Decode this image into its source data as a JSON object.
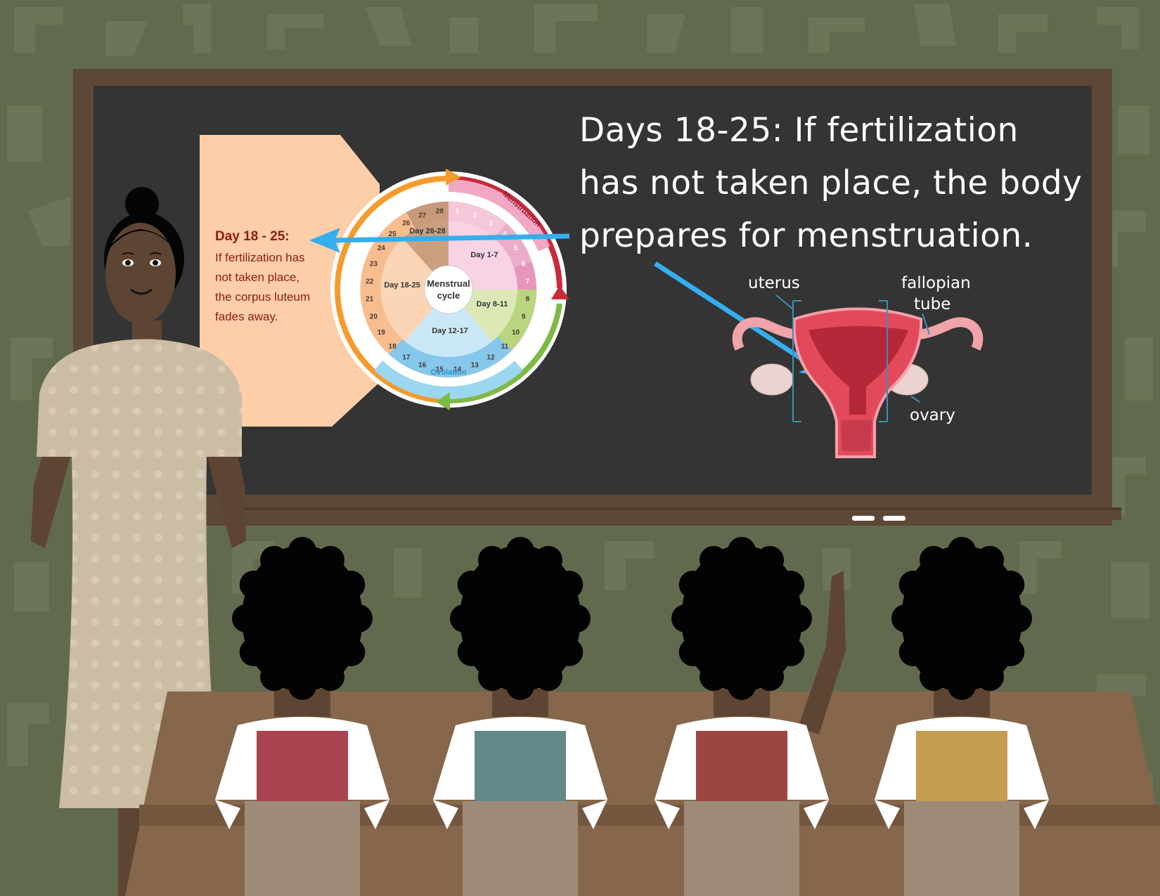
{
  "board": {
    "heading_lines": [
      "Days 18-25: If fertilization",
      "has not taken place, the body",
      "prepares for menstruation."
    ]
  },
  "card": {
    "title": "Day 18 - 25:",
    "lines": [
      "If fertilization has",
      "not taken place,",
      "the corpus luteum",
      "fades away."
    ]
  },
  "wheel": {
    "center_lines": [
      "Menstrual",
      "cycle"
    ],
    "phases": {
      "day_1_7": "Day 1-7",
      "day_8_11": "Day 8-11",
      "day_12_17": "Day 12-17",
      "day_18_25": "Day 18-25",
      "day_26_28": "Day 26-28"
    },
    "days": [
      "1",
      "2",
      "3",
      "4",
      "5",
      "6",
      "7",
      "8",
      "9",
      "10",
      "11",
      "12",
      "13",
      "14",
      "15",
      "16",
      "17",
      "18",
      "19",
      "20",
      "21",
      "22",
      "23",
      "24",
      "25",
      "26",
      "27",
      "28"
    ],
    "arc_labels": {
      "menstruation": "Menstruation",
      "ovulation": "Ovulation"
    }
  },
  "anatomy": {
    "labels": {
      "uterus": "uterus",
      "fallopian_1": "fallopian",
      "fallopian_2": "tube",
      "ovary": "ovary"
    }
  },
  "colors": {
    "wall": "#626a4e",
    "board_frame": "#5d4838",
    "chalkboard": "#343434",
    "card": "#fdcea8",
    "arrow": "#35aeee",
    "card_text": "#8e1c15",
    "desk": "#86674b",
    "chair": "#9d8b78",
    "vest_1": "#a8434f",
    "vest_2": "#64888a",
    "vest_3": "#9b4643",
    "vest_4": "#c49c52",
    "teacher_dress": "#cbbca4",
    "skin": "#5e4533"
  },
  "icons": {
    "arrow_to_card": "left-arrow-icon",
    "arrow_to_uterus": "diagonal-arrow-icon"
  }
}
